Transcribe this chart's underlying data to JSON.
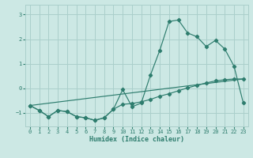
{
  "xlabel": "Humidex (Indice chaleur)",
  "bg_color": "#cce8e4",
  "grid_color": "#aacfcb",
  "line_color": "#2e7d6e",
  "xlim": [
    -0.5,
    23.5
  ],
  "ylim": [
    -1.55,
    3.4
  ],
  "xticks": [
    0,
    1,
    2,
    3,
    4,
    5,
    6,
    7,
    8,
    9,
    10,
    11,
    12,
    13,
    14,
    15,
    16,
    17,
    18,
    19,
    20,
    21,
    22,
    23
  ],
  "yticks": [
    -1,
    0,
    1,
    2,
    3
  ],
  "line1_x": [
    0,
    1,
    2,
    3,
    4,
    5,
    6,
    7,
    8,
    9,
    10,
    11,
    12,
    13,
    14,
    15,
    16,
    17,
    18,
    19,
    20,
    21,
    22,
    23
  ],
  "line1_y": [
    -0.7,
    -0.9,
    -1.15,
    -0.9,
    -0.95,
    -1.15,
    -1.2,
    -1.3,
    -1.2,
    -0.85,
    -0.05,
    -0.75,
    -0.6,
    0.55,
    1.55,
    2.72,
    2.78,
    2.25,
    2.1,
    1.7,
    1.95,
    1.6,
    0.9,
    -0.6
  ],
  "line2_x": [
    0,
    1,
    2,
    3,
    4,
    5,
    6,
    7,
    8,
    9,
    10,
    11,
    12,
    13,
    14,
    15,
    16,
    17,
    18,
    19,
    20,
    21,
    22,
    23
  ],
  "line2_y": [
    -0.7,
    -0.9,
    -1.15,
    -0.9,
    -0.95,
    -1.15,
    -1.2,
    -1.3,
    -1.2,
    -0.85,
    -0.65,
    -0.62,
    -0.55,
    -0.45,
    -0.32,
    -0.22,
    -0.1,
    0.02,
    0.12,
    0.22,
    0.3,
    0.35,
    0.38,
    0.38
  ],
  "line3_x": [
    0,
    23
  ],
  "line3_y": [
    -0.7,
    0.38
  ]
}
